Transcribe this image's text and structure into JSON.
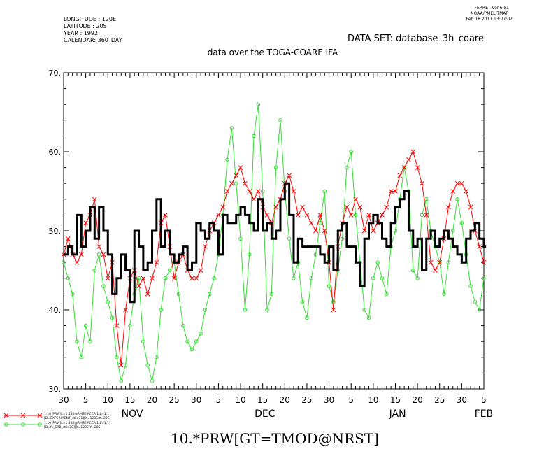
{
  "header": {
    "ferret_version": "FERRET  Ver.6.51",
    "ferret_org": "NOAA/PMEL TMAP",
    "ferret_date": "Feb 18 2011 13:07:02",
    "meta_lines": [
      "LONGITUDE : 120E",
      "LATITUDE : 20S",
      "YEAR : 1992",
      "CALENDAR: 360_DAY"
    ],
    "dataset": "DATA SET: database_3h_coare"
  },
  "chart_data": {
    "type": "line",
    "title": "data over the TOGA-COARE IFA",
    "xlabel": "10.*PRW[GT=TMOD@NRST]",
    "ylabel": "",
    "ylim": [
      30,
      70
    ],
    "yticks": [
      30,
      40,
      50,
      60,
      70
    ],
    "y_tick_labels": [
      "30.",
      "40.",
      "50.",
      "60.",
      "70."
    ],
    "xlim": [
      0,
      95
    ],
    "x_day_ticks": [
      {
        "x": 0,
        "label": "30"
      },
      {
        "x": 5,
        "label": "5"
      },
      {
        "x": 10,
        "label": "10"
      },
      {
        "x": 15,
        "label": "15"
      },
      {
        "x": 20,
        "label": "20"
      },
      {
        "x": 25,
        "label": "25"
      },
      {
        "x": 30,
        "label": "30"
      },
      {
        "x": 35,
        "label": "5"
      },
      {
        "x": 40,
        "label": "10"
      },
      {
        "x": 45,
        "label": "15"
      },
      {
        "x": 50,
        "label": "20"
      },
      {
        "x": 55,
        "label": "25"
      },
      {
        "x": 60,
        "label": "30"
      },
      {
        "x": 65,
        "label": "5"
      },
      {
        "x": 70,
        "label": "10"
      },
      {
        "x": 75,
        "label": "15"
      },
      {
        "x": 80,
        "label": "20"
      },
      {
        "x": 85,
        "label": "25"
      },
      {
        "x": 90,
        "label": "30"
      },
      {
        "x": 95,
        "label": "5"
      }
    ],
    "x_month_labels": [
      {
        "x": 15.5,
        "label": "NOV"
      },
      {
        "x": 45.5,
        "label": "DEC"
      },
      {
        "x": 75.5,
        "label": "JAN"
      },
      {
        "x": 95,
        "label": "FEB"
      }
    ],
    "grid": false,
    "legend_placement": "bottom-left",
    "series": [
      {
        "legend_lines": [
          "1:10*PRW[L=1:480@RMSE#CCA,1,L=1:1]",
          "[D=EXPERIMENT_stlin31][X=120E:Y=20S]"
        ],
        "color": "#ff0000",
        "marker": "x",
        "step": false,
        "x": [
          0,
          1,
          2,
          3,
          4,
          5,
          6,
          7,
          8,
          9,
          10,
          11,
          12,
          13,
          14,
          15,
          16,
          17,
          18,
          19,
          20,
          21,
          22,
          23,
          24,
          25,
          26,
          27,
          28,
          29,
          30,
          31,
          32,
          33,
          34,
          35,
          36,
          37,
          38,
          39,
          40,
          41,
          42,
          43,
          44,
          45,
          46,
          47,
          48,
          49,
          50,
          51,
          52,
          53,
          54,
          55,
          56,
          57,
          58,
          59,
          60,
          61,
          62,
          63,
          64,
          65,
          66,
          67,
          68,
          69,
          70,
          71,
          72,
          73,
          74,
          75,
          76,
          77,
          78,
          79,
          80,
          81,
          82,
          83,
          84,
          85,
          86,
          87,
          88,
          89,
          90,
          91,
          92,
          93,
          94,
          95
        ],
        "values": [
          47,
          49,
          47,
          46,
          47,
          51,
          52,
          54,
          48,
          47,
          44,
          46,
          38,
          33,
          40,
          44,
          45,
          43,
          44,
          42,
          44,
          46,
          51,
          52,
          48,
          44,
          46,
          47,
          45,
          44,
          44,
          45,
          48,
          50,
          51,
          52,
          53,
          55,
          56,
          57,
          58,
          56,
          55,
          54,
          55,
          53,
          52,
          51,
          53,
          54,
          56,
          57,
          55,
          52,
          53,
          52,
          51,
          50,
          52,
          50,
          46,
          40,
          48,
          51,
          53,
          52,
          54,
          53,
          50,
          52,
          50,
          51,
          52,
          53,
          55,
          55,
          57,
          58,
          59,
          60,
          58,
          56,
          52,
          46,
          45,
          46,
          49,
          53,
          55,
          56,
          56,
          55,
          53,
          50,
          48,
          46
        ]
      },
      {
        "legend_lines": [
          "1:10*PRW[L=1:480@RMSE#CCA,1,L=1:1]",
          "[D=fv_ERB_stlin30][X=120E:Y=20S]"
        ],
        "color": "#33dd33",
        "marker": "o",
        "step": false,
        "x": [
          0,
          1,
          2,
          3,
          4,
          5,
          6,
          7,
          8,
          9,
          10,
          11,
          12,
          13,
          14,
          15,
          16,
          17,
          18,
          19,
          20,
          21,
          22,
          23,
          24,
          25,
          26,
          27,
          28,
          29,
          30,
          31,
          32,
          33,
          34,
          35,
          36,
          37,
          38,
          39,
          40,
          41,
          42,
          43,
          44,
          45,
          46,
          47,
          48,
          49,
          50,
          51,
          52,
          53,
          54,
          55,
          56,
          57,
          58,
          59,
          60,
          61,
          62,
          63,
          64,
          65,
          66,
          67,
          68,
          69,
          70,
          71,
          72,
          73,
          74,
          75,
          76,
          77,
          78,
          79,
          80,
          81,
          82,
          83,
          84,
          85,
          86,
          87,
          88,
          89,
          90,
          91,
          92,
          93,
          94,
          95
        ],
        "values": [
          46,
          44,
          42,
          36,
          34,
          38,
          36,
          45,
          47,
          43,
          41,
          39,
          34,
          31,
          33,
          38,
          42,
          44,
          36,
          33,
          31,
          34,
          40,
          44,
          45,
          46,
          42,
          38,
          36,
          35,
          36,
          37,
          40,
          42,
          44,
          47,
          52,
          59,
          63,
          56,
          49,
          40,
          47,
          62,
          66,
          55,
          40,
          42,
          58,
          64,
          55,
          49,
          44,
          46,
          41,
          39,
          44,
          47,
          51,
          55,
          43,
          41,
          45,
          49,
          58,
          60,
          52,
          46,
          40,
          39,
          44,
          46,
          44,
          42,
          48,
          50,
          54,
          58,
          55,
          45,
          44,
          52,
          54,
          50,
          48,
          46,
          42,
          46,
          50,
          54,
          51,
          47,
          43,
          41,
          40,
          44
        ]
      },
      {
        "legend_lines": [],
        "color": "#000000",
        "marker": "none",
        "step": true,
        "x": [
          0,
          1,
          2,
          3,
          4,
          5,
          6,
          7,
          8,
          9,
          10,
          11,
          12,
          13,
          14,
          15,
          16,
          17,
          18,
          19,
          20,
          21,
          22,
          23,
          24,
          25,
          26,
          27,
          28,
          29,
          30,
          31,
          32,
          33,
          34,
          35,
          36,
          37,
          38,
          39,
          40,
          41,
          42,
          43,
          44,
          45,
          46,
          47,
          48,
          49,
          50,
          51,
          52,
          53,
          54,
          55,
          56,
          57,
          58,
          59,
          60,
          61,
          62,
          63,
          64,
          65,
          66,
          67,
          68,
          69,
          70,
          71,
          72,
          73,
          74,
          75,
          76,
          77,
          78,
          79,
          80,
          81,
          82,
          83,
          84,
          85,
          86,
          87,
          88,
          89,
          90,
          91,
          92,
          93,
          94,
          95
        ],
        "values": [
          47,
          48,
          47,
          52,
          48,
          50,
          53,
          49,
          53,
          50,
          47,
          42,
          44,
          47,
          45,
          41,
          50,
          48,
          45,
          46,
          50,
          54,
          48,
          50,
          47,
          46,
          47,
          48,
          45,
          46,
          51,
          50,
          49,
          51,
          50,
          47,
          52,
          51,
          51,
          52,
          53,
          52,
          51,
          50,
          54,
          50,
          51,
          49,
          50,
          54,
          56,
          52,
          46,
          49,
          48,
          48,
          48,
          48,
          47,
          46,
          48,
          45,
          50,
          51,
          48,
          48,
          46,
          43,
          49,
          51,
          52,
          51,
          49,
          48,
          51,
          53,
          54,
          55,
          50,
          48,
          49,
          45,
          49,
          50,
          48,
          49,
          50,
          49,
          48,
          47,
          46,
          49,
          50,
          51,
          49,
          48
        ]
      }
    ]
  }
}
